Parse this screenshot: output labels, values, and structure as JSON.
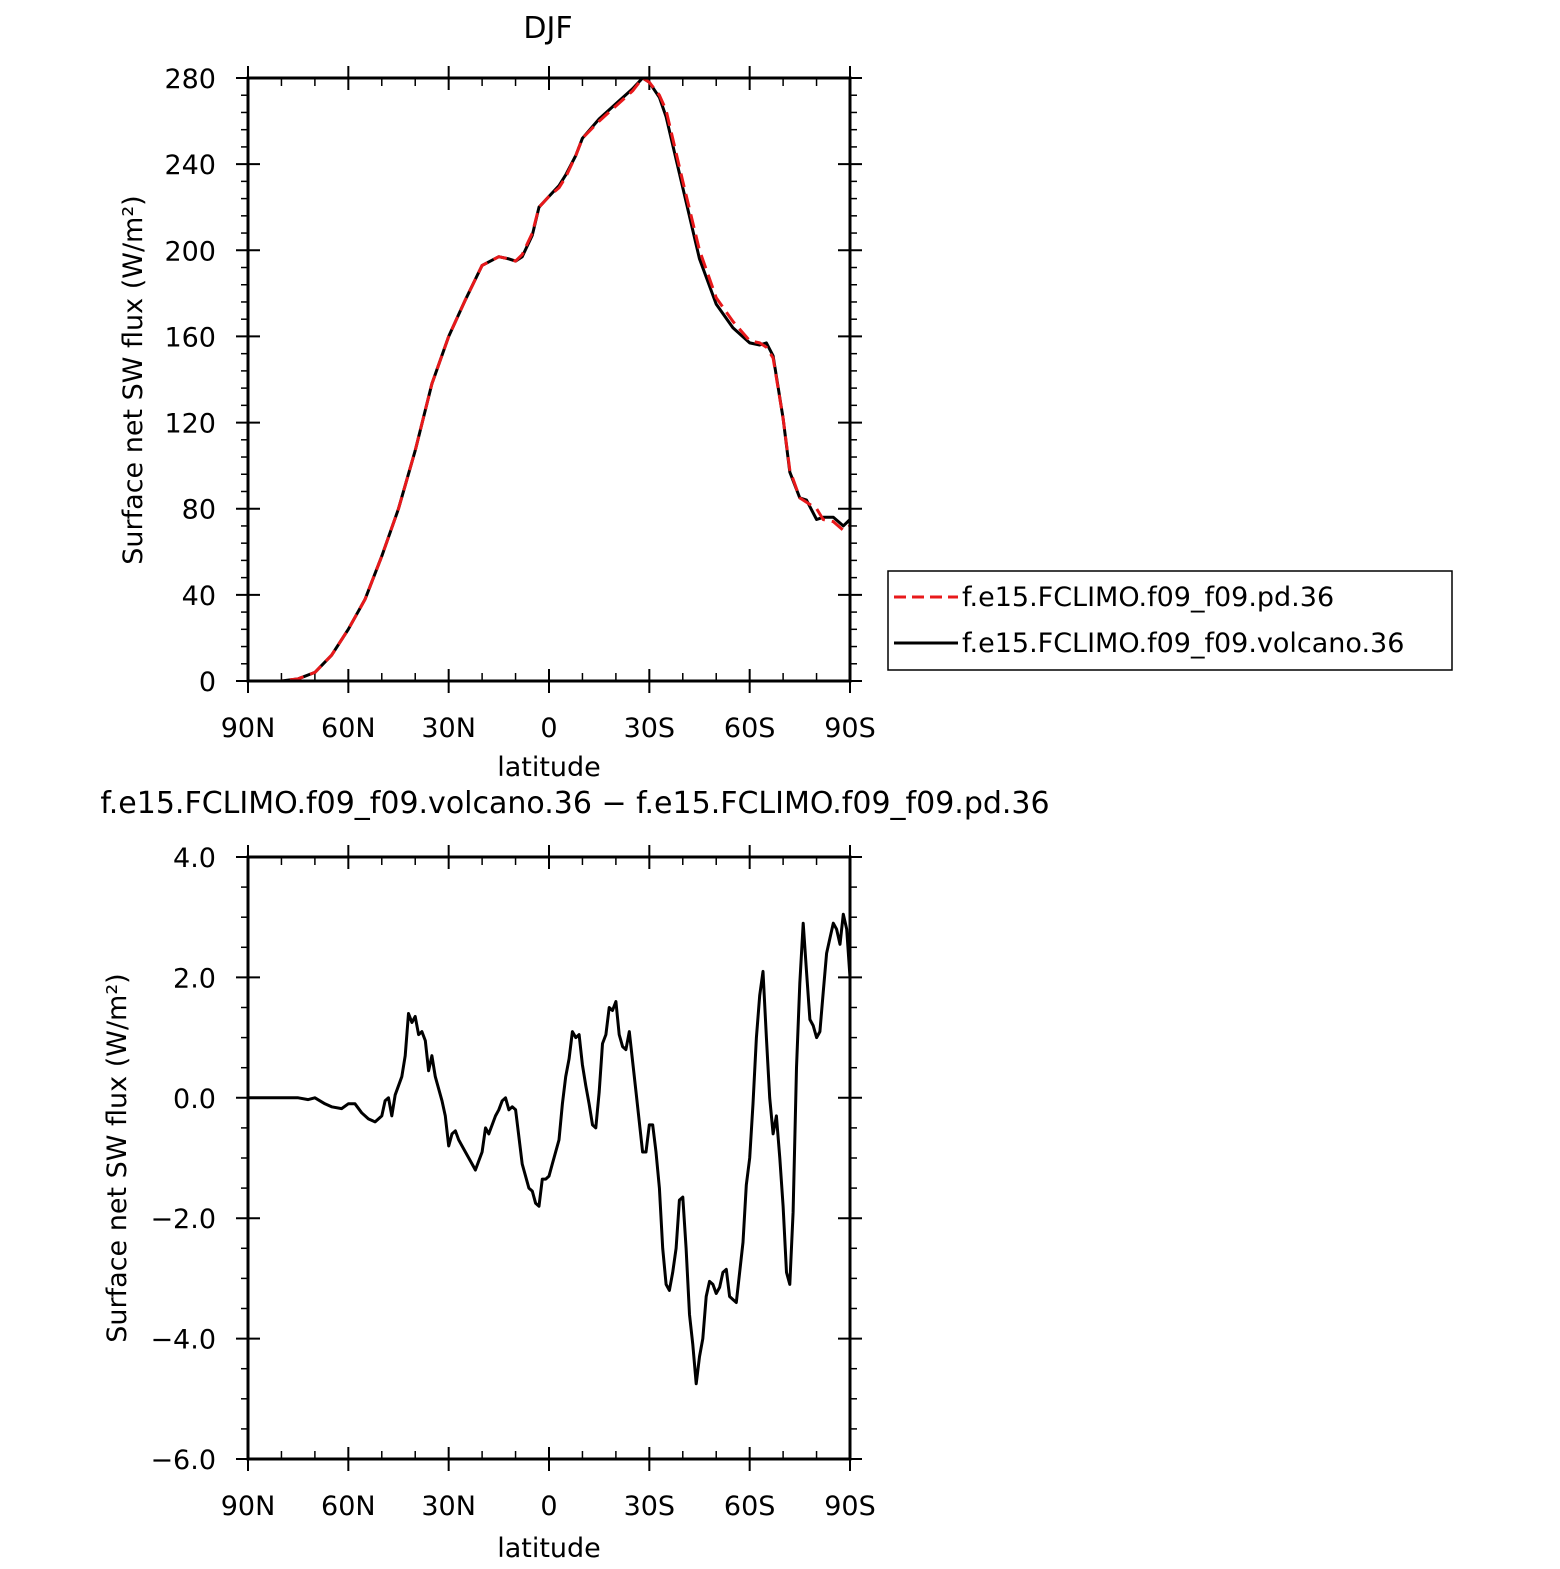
{
  "chart_data": [
    {
      "type": "line",
      "title": "DJF",
      "xlabel": "latitude",
      "ylabel": "Surface net SW flux (W/m²)",
      "xlim": [
        90,
        -90
      ],
      "ylim": [
        0,
        280
      ],
      "x_ticks": [
        {
          "value": 90,
          "label": "90N"
        },
        {
          "value": 60,
          "label": "60N"
        },
        {
          "value": 30,
          "label": "30N"
        },
        {
          "value": 0,
          "label": "0"
        },
        {
          "value": -30,
          "label": "30S"
        },
        {
          "value": -60,
          "label": "60S"
        },
        {
          "value": -90,
          "label": "90S"
        }
      ],
      "y_ticks": [
        {
          "value": 0,
          "label": "0"
        },
        {
          "value": 40,
          "label": "40"
        },
        {
          "value": 80,
          "label": "80"
        },
        {
          "value": 120,
          "label": "120"
        },
        {
          "value": 160,
          "label": "160"
        },
        {
          "value": 200,
          "label": "200"
        },
        {
          "value": 240,
          "label": "240"
        },
        {
          "value": 280,
          "label": "280"
        }
      ],
      "legend_position": "right",
      "x": [
        90,
        85,
        80,
        75,
        70,
        65,
        60,
        55,
        50,
        45,
        40,
        35,
        30,
        25,
        20,
        15,
        12,
        10,
        8,
        5,
        3,
        0,
        -3,
        -5,
        -8,
        -10,
        -15,
        -20,
        -25,
        -28,
        -30,
        -33,
        -35,
        -40,
        -45,
        -50,
        -55,
        -60,
        -63,
        -65,
        -67,
        -70,
        -72,
        -75,
        -77,
        -80,
        -82,
        -85,
        -88,
        -90
      ],
      "series": [
        {
          "name": "f.e15.FCLIMO.f09_f09.pd.36",
          "color": "#e8191b",
          "dash": "dashed",
          "values": [
            0,
            0,
            0,
            1,
            4,
            12,
            24,
            38,
            58,
            80,
            107,
            138,
            160,
            177,
            193,
            197,
            196,
            195,
            198,
            208,
            220,
            225,
            229,
            234,
            244,
            252,
            260,
            267,
            274,
            280,
            278,
            272,
            265,
            232,
            200,
            178,
            167,
            158,
            157,
            155,
            150,
            122,
            98,
            85,
            83,
            80,
            75,
            74,
            70,
            72
          ]
        },
        {
          "name": "f.e15.FCLIMO.f09_f09.volcano.36",
          "color": "#000000",
          "dash": "solid",
          "values": [
            0,
            0,
            0,
            1,
            4,
            12,
            24,
            38,
            58,
            80,
            107,
            138,
            160,
            177,
            193,
            197,
            196,
            195,
            197,
            207,
            220,
            225,
            230,
            235,
            244,
            252,
            261,
            268,
            275,
            280,
            278,
            271,
            262,
            229,
            196,
            175,
            164,
            157,
            156,
            157,
            151,
            122,
            97,
            85,
            84,
            75,
            76,
            76,
            72,
            75
          ]
        }
      ]
    },
    {
      "type": "line",
      "title": "f.e15.FCLIMO.f09_f09.volcano.36 − f.e15.FCLIMO.f09_f09.pd.36",
      "xlabel": "latitude",
      "ylabel": "Surface net SW flux (W/m²)",
      "xlim": [
        90,
        -90
      ],
      "ylim": [
        -6.0,
        4.0
      ],
      "x_ticks": [
        {
          "value": 90,
          "label": "90N"
        },
        {
          "value": 60,
          "label": "60N"
        },
        {
          "value": 30,
          "label": "30N"
        },
        {
          "value": 0,
          "label": "0"
        },
        {
          "value": -30,
          "label": "30S"
        },
        {
          "value": -60,
          "label": "60S"
        },
        {
          "value": -90,
          "label": "90S"
        }
      ],
      "y_ticks": [
        {
          "value": 4.0,
          "label": "4.0"
        },
        {
          "value": 2.0,
          "label": "2.0"
        },
        {
          "value": 0.0,
          "label": "0.0"
        },
        {
          "value": -2.0,
          "label": "−2.0"
        },
        {
          "value": -4.0,
          "label": "−4.0"
        },
        {
          "value": -6.0,
          "label": "−6.0"
        }
      ],
      "series": [
        {
          "name": "",
          "color": "#000000",
          "dash": "solid",
          "x": [
            90,
            80,
            75,
            72,
            70,
            67,
            65,
            62,
            60,
            58,
            56,
            54,
            52,
            50,
            49,
            48,
            47,
            46,
            44,
            43,
            42,
            41,
            40,
            39,
            38,
            37,
            36,
            35,
            34,
            32,
            31,
            30,
            29,
            28,
            27,
            25,
            23,
            22,
            20,
            19,
            18,
            16,
            15,
            14,
            13,
            12,
            11,
            10,
            8,
            6,
            5,
            4,
            3,
            2,
            1,
            0,
            -1,
            -3,
            -4,
            -5,
            -6,
            -7,
            -8,
            -9,
            -10,
            -11,
            -12,
            -13,
            -14,
            -15,
            -16,
            -17,
            -18,
            -19,
            -20,
            -21,
            -22,
            -23,
            -24,
            -26,
            -28,
            -29,
            -30,
            -31,
            -32,
            -33,
            -34,
            -35,
            -36,
            -37,
            -38,
            -39,
            -40,
            -41,
            -42,
            -43,
            -44,
            -45,
            -46,
            -47,
            -48,
            -49,
            -50,
            -51,
            -52,
            -53,
            -54,
            -55,
            -56,
            -58,
            -59,
            -60,
            -61,
            -62,
            -63,
            -64,
            -65,
            -66,
            -67,
            -68,
            -69,
            -70,
            -71,
            -72,
            -73,
            -74,
            -75,
            -76,
            -77,
            -78,
            -79,
            -80,
            -81,
            -82,
            -83,
            -84,
            -85,
            -86,
            -87,
            -88,
            -89,
            -90
          ],
          "values": [
            0.0,
            0.0,
            0.0,
            -0.03,
            0.0,
            -0.1,
            -0.15,
            -0.18,
            -0.1,
            -0.1,
            -0.25,
            -0.35,
            -0.4,
            -0.3,
            -0.05,
            0.0,
            -0.3,
            0.05,
            0.35,
            0.7,
            1.4,
            1.25,
            1.35,
            1.05,
            1.1,
            0.95,
            0.45,
            0.7,
            0.35,
            -0.05,
            -0.3,
            -0.8,
            -0.6,
            -0.55,
            -0.7,
            -0.9,
            -1.1,
            -1.2,
            -0.9,
            -0.5,
            -0.6,
            -0.3,
            -0.2,
            -0.05,
            0.0,
            -0.2,
            -0.15,
            -0.2,
            -1.1,
            -1.5,
            -1.55,
            -1.75,
            -1.8,
            -1.35,
            -1.35,
            -1.3,
            -1.1,
            -0.7,
            -0.1,
            0.35,
            0.65,
            1.1,
            1.0,
            1.05,
            0.55,
            0.2,
            -0.1,
            -0.45,
            -0.5,
            0.1,
            0.9,
            1.05,
            1.5,
            1.45,
            1.6,
            1.05,
            0.85,
            0.8,
            1.1,
            0.1,
            -0.9,
            -0.9,
            -0.45,
            -0.45,
            -0.9,
            -1.5,
            -2.5,
            -3.1,
            -3.2,
            -2.9,
            -2.5,
            -1.7,
            -1.65,
            -2.5,
            -3.6,
            -4.1,
            -4.75,
            -4.3,
            -4.0,
            -3.3,
            -3.05,
            -3.1,
            -3.25,
            -3.15,
            -2.9,
            -2.85,
            -3.3,
            -3.35,
            -3.4,
            -2.4,
            -1.45,
            -1.0,
            -0.1,
            1.0,
            1.7,
            2.1,
            1.0,
            0.0,
            -0.6,
            -0.3,
            -1.0,
            -1.8,
            -2.9,
            -3.1,
            -1.9,
            0.5,
            1.9,
            2.9,
            2.1,
            1.3,
            1.2,
            1.0,
            1.1,
            1.75,
            2.4,
            2.65,
            2.9,
            2.8,
            2.55,
            3.05,
            2.8,
            2.0
          ]
        }
      ]
    }
  ]
}
